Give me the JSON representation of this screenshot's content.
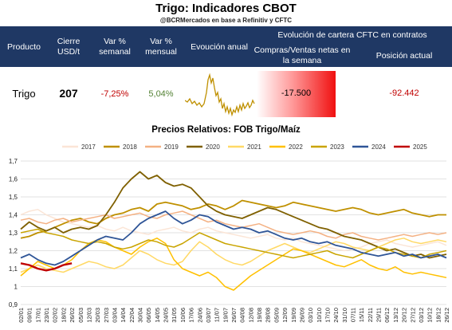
{
  "header": {
    "title": "Trigo: Indicadores CBOT",
    "subtitle": "@BCRMercados en base a Refinitiv y CFTC",
    "columns": {
      "producto": "Producto",
      "cierre": [
        "Cierre",
        "USD/t"
      ],
      "var_semanal": [
        "Var %",
        "semanal"
      ],
      "var_mensual": [
        "Var %",
        "mensual"
      ],
      "evolucion": "Evoución anual",
      "cftc_group": "Evolución de cartera CFTC en contratos",
      "cftc_weekly": [
        "Compras/Ventas netas en",
        "la semana"
      ],
      "cftc_position": "Posición actual"
    }
  },
  "row": {
    "producto": "Trigo",
    "cierre": "207",
    "var_semanal": "-7,25%",
    "var_mensual": "5,04%",
    "cftc_weekly": "-17.500",
    "cftc_position": "-92.442"
  },
  "colors": {
    "header_bg": "#1f3864",
    "negative": "#c00000",
    "positive": "#548235",
    "sparkline": "#bf9000"
  },
  "chart_data": {
    "type": "line",
    "title": "Precios Relativos: FOB Trigo/Maíz",
    "ylim": [
      0.9,
      1.7
    ],
    "yticks": [
      "0,9",
      "1",
      "1,1",
      "1,2",
      "1,3",
      "1,4",
      "1,5",
      "1,6",
      "1,7"
    ],
    "grid": true,
    "legend": "top",
    "x": [
      "02/01",
      "09/01",
      "17/01",
      "23/01",
      "02/02",
      "18/02",
      "26/02",
      "05/03",
      "12/03",
      "20/03",
      "27/03",
      "03/04",
      "14/04",
      "22/04",
      "30/04",
      "06/05",
      "14/05",
      "24/05",
      "31/05",
      "10/06",
      "17/06",
      "24/06",
      "03/07",
      "11/07",
      "19/07",
      "26/07",
      "04/08",
      "12/08",
      "19/08",
      "28/08",
      "05/09",
      "12/09",
      "19/09",
      "26/09",
      "03/10",
      "10/10",
      "17/10",
      "24/10",
      "31/10",
      "07/11",
      "15/11",
      "22/11",
      "29/11",
      "06/12",
      "13/12",
      "20/12",
      "27/12",
      "03/12",
      "10/12",
      "18/12",
      "26/12"
    ],
    "xticks": [
      "02/01",
      "09/01",
      "17/01",
      "23/01",
      "02/02",
      "18/02",
      "26/02",
      "05/03",
      "12/03",
      "20/03",
      "27/03",
      "03/04",
      "14/04",
      "22/04",
      "30/04",
      "06/05",
      "14/05",
      "24/05",
      "31/05",
      "10/06",
      "17/06",
      "24/06",
      "03/07",
      "11/07",
      "19/07",
      "26/07",
      "04/08",
      "12/08",
      "19/08",
      "28/08",
      "05/09",
      "12/09",
      "19/09",
      "26/09",
      "03/10",
      "10/10",
      "17/10",
      "24/10",
      "31/10",
      "07/11",
      "15/11",
      "22/11",
      "29/11",
      "06/12",
      "13/12",
      "20/12",
      "27/12",
      "03/12",
      "10/12",
      "18/12",
      "26/12"
    ],
    "series": [
      {
        "name": "2017",
        "color": "#fbe5d6",
        "values": [
          1.4,
          1.42,
          1.43,
          1.4,
          1.38,
          1.36,
          1.35,
          1.34,
          1.33,
          1.34,
          1.32,
          1.31,
          1.33,
          1.31,
          1.3,
          1.29,
          1.31,
          1.32,
          1.33,
          1.31,
          1.3,
          1.32,
          1.33,
          1.31,
          1.3,
          1.29,
          1.28,
          1.27,
          1.28,
          1.29,
          1.27,
          1.26,
          1.27,
          1.25,
          1.24,
          1.23,
          1.22,
          1.21,
          1.2,
          1.21,
          1.22,
          1.24,
          1.25,
          1.26,
          1.24,
          1.23,
          1.22,
          1.23,
          1.24,
          1.25,
          1.23
        ]
      },
      {
        "name": "2018",
        "color": "#bf9000",
        "values": [
          1.27,
          1.28,
          1.3,
          1.31,
          1.33,
          1.35,
          1.37,
          1.38,
          1.36,
          1.35,
          1.38,
          1.4,
          1.41,
          1.43,
          1.44,
          1.42,
          1.46,
          1.47,
          1.46,
          1.45,
          1.43,
          1.44,
          1.46,
          1.45,
          1.43,
          1.45,
          1.48,
          1.47,
          1.46,
          1.45,
          1.44,
          1.45,
          1.47,
          1.46,
          1.45,
          1.44,
          1.43,
          1.42,
          1.43,
          1.44,
          1.43,
          1.41,
          1.4,
          1.41,
          1.42,
          1.43,
          1.41,
          1.4,
          1.39,
          1.4,
          1.4
        ]
      },
      {
        "name": "2019",
        "color": "#f4b183",
        "values": [
          1.37,
          1.38,
          1.36,
          1.35,
          1.37,
          1.38,
          1.36,
          1.37,
          1.38,
          1.39,
          1.4,
          1.38,
          1.39,
          1.4,
          1.41,
          1.39,
          1.38,
          1.4,
          1.41,
          1.42,
          1.4,
          1.38,
          1.36,
          1.37,
          1.35,
          1.34,
          1.33,
          1.34,
          1.35,
          1.33,
          1.31,
          1.3,
          1.29,
          1.3,
          1.31,
          1.3,
          1.28,
          1.27,
          1.29,
          1.3,
          1.28,
          1.27,
          1.26,
          1.27,
          1.28,
          1.29,
          1.28,
          1.29,
          1.3,
          1.29,
          1.3
        ]
      },
      {
        "name": "2020",
        "color": "#7f6000",
        "values": [
          1.32,
          1.36,
          1.33,
          1.31,
          1.33,
          1.3,
          1.32,
          1.33,
          1.32,
          1.34,
          1.4,
          1.47,
          1.55,
          1.6,
          1.64,
          1.6,
          1.62,
          1.58,
          1.56,
          1.57,
          1.55,
          1.5,
          1.45,
          1.42,
          1.4,
          1.39,
          1.38,
          1.4,
          1.42,
          1.44,
          1.43,
          1.41,
          1.39,
          1.37,
          1.35,
          1.33,
          1.32,
          1.3,
          1.28,
          1.27,
          1.26,
          1.24,
          1.22,
          1.2,
          1.21,
          1.19,
          1.17,
          1.18,
          1.16,
          1.17,
          1.18
        ]
      },
      {
        "name": "2021",
        "color": "#ffd966",
        "values": [
          1.08,
          1.1,
          1.12,
          1.1,
          1.09,
          1.08,
          1.1,
          1.12,
          1.14,
          1.13,
          1.11,
          1.1,
          1.12,
          1.16,
          1.2,
          1.18,
          1.15,
          1.13,
          1.12,
          1.14,
          1.2,
          1.25,
          1.22,
          1.18,
          1.15,
          1.13,
          1.12,
          1.14,
          1.17,
          1.2,
          1.22,
          1.24,
          1.22,
          1.2,
          1.19,
          1.21,
          1.23,
          1.25,
          1.24,
          1.22,
          1.21,
          1.2,
          1.22,
          1.24,
          1.26,
          1.27,
          1.25,
          1.24,
          1.25,
          1.26,
          1.25
        ]
      },
      {
        "name": "2022",
        "color": "#ffc000",
        "values": [
          1.06,
          1.1,
          1.14,
          1.12,
          1.1,
          1.12,
          1.15,
          1.2,
          1.24,
          1.26,
          1.25,
          1.22,
          1.2,
          1.18,
          1.22,
          1.25,
          1.27,
          1.24,
          1.15,
          1.1,
          1.08,
          1.06,
          1.08,
          1.05,
          1.0,
          0.98,
          1.02,
          1.06,
          1.09,
          1.12,
          1.15,
          1.18,
          1.21,
          1.2,
          1.18,
          1.16,
          1.14,
          1.12,
          1.11,
          1.13,
          1.15,
          1.12,
          1.1,
          1.09,
          1.11,
          1.08,
          1.07,
          1.08,
          1.07,
          1.06,
          1.05
        ]
      },
      {
        "name": "2023",
        "color": "#c9a400",
        "values": [
          1.3,
          1.31,
          1.32,
          1.3,
          1.29,
          1.28,
          1.26,
          1.25,
          1.24,
          1.25,
          1.24,
          1.22,
          1.21,
          1.22,
          1.24,
          1.26,
          1.25,
          1.23,
          1.22,
          1.24,
          1.27,
          1.3,
          1.28,
          1.26,
          1.24,
          1.23,
          1.22,
          1.21,
          1.2,
          1.19,
          1.18,
          1.17,
          1.16,
          1.17,
          1.18,
          1.19,
          1.2,
          1.18,
          1.17,
          1.16,
          1.18,
          1.2,
          1.22,
          1.21,
          1.19,
          1.18,
          1.17,
          1.16,
          1.18,
          1.19,
          1.2
        ]
      },
      {
        "name": "2024",
        "color": "#2f5597",
        "values": [
          1.16,
          1.18,
          1.15,
          1.13,
          1.12,
          1.14,
          1.17,
          1.2,
          1.23,
          1.26,
          1.28,
          1.27,
          1.26,
          1.3,
          1.35,
          1.38,
          1.4,
          1.42,
          1.38,
          1.35,
          1.37,
          1.4,
          1.39,
          1.36,
          1.34,
          1.32,
          1.33,
          1.32,
          1.3,
          1.31,
          1.29,
          1.27,
          1.26,
          1.27,
          1.25,
          1.24,
          1.25,
          1.23,
          1.22,
          1.21,
          1.19,
          1.18,
          1.17,
          1.18,
          1.19,
          1.17,
          1.18,
          1.16,
          1.17,
          1.18,
          1.16
        ]
      },
      {
        "name": "2025",
        "color": "#c00000",
        "values": [
          1.13,
          1.12,
          1.1,
          1.09,
          1.1,
          1.12,
          1.13,
          null,
          null,
          null,
          null,
          null,
          null,
          null,
          null,
          null,
          null,
          null,
          null,
          null,
          null,
          null,
          null,
          null,
          null,
          null,
          null,
          null,
          null,
          null,
          null,
          null,
          null,
          null,
          null,
          null,
          null,
          null,
          null,
          null,
          null,
          null,
          null,
          null,
          null,
          null,
          null,
          null,
          null,
          null,
          null
        ]
      }
    ]
  }
}
